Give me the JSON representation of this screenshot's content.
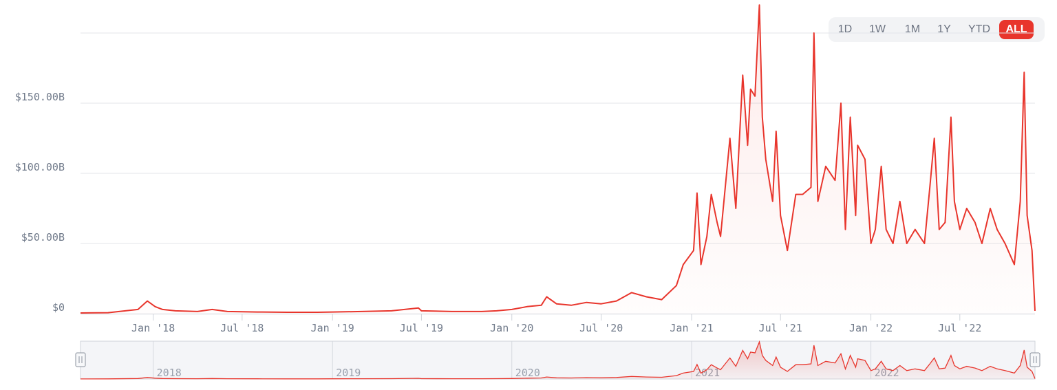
{
  "range_selector": {
    "options": [
      "1D",
      "1W",
      "1M",
      "1Y",
      "YTD",
      "ALL"
    ],
    "selected": "ALL"
  },
  "colors": {
    "line": "#e8352c",
    "grid": "#e3e6ea",
    "active_button": "#e8352c"
  },
  "chart_data": {
    "type": "line",
    "title": "",
    "xlabel": "",
    "ylabel": "",
    "ylim": [
      0,
      200
    ],
    "y_unit": "B USD",
    "yticks": [
      {
        "value": 0,
        "label": "$0"
      },
      {
        "value": 50,
        "label": "$50.00B"
      },
      {
        "value": 100,
        "label": "$100.00B"
      },
      {
        "value": 150,
        "label": "$150.00B"
      }
    ],
    "xlim": [
      "2017-08-06",
      "2022-12-01"
    ],
    "xticks": [
      {
        "date": "2018-01-01",
        "label": "Jan '18"
      },
      {
        "date": "2018-07-01",
        "label": "Jul '18"
      },
      {
        "date": "2019-01-01",
        "label": "Jan '19"
      },
      {
        "date": "2019-07-01",
        "label": "Jul '19"
      },
      {
        "date": "2020-01-01",
        "label": "Jan '20"
      },
      {
        "date": "2020-07-01",
        "label": "Jul '20"
      },
      {
        "date": "2021-01-01",
        "label": "Jan '21"
      },
      {
        "date": "2021-07-01",
        "label": "Jul '21"
      },
      {
        "date": "2022-01-01",
        "label": "Jan '22"
      },
      {
        "date": "2022-07-01",
        "label": "Jul '22"
      }
    ],
    "grid": true,
    "legend": "none",
    "series": [
      {
        "values": [
          [
            "2017-08-06",
            0.5
          ],
          [
            "2017-10-01",
            0.7
          ],
          [
            "2017-12-01",
            3
          ],
          [
            "2017-12-20",
            9
          ],
          [
            "2018-01-05",
            5
          ],
          [
            "2018-01-20",
            3
          ],
          [
            "2018-02-15",
            2
          ],
          [
            "2018-04-01",
            1.5
          ],
          [
            "2018-05-01",
            3
          ],
          [
            "2018-06-01",
            1.5
          ],
          [
            "2018-08-01",
            1.2
          ],
          [
            "2018-10-01",
            1
          ],
          [
            "2018-12-01",
            1
          ],
          [
            "2019-01-01",
            1.2
          ],
          [
            "2019-03-01",
            1.5
          ],
          [
            "2019-05-01",
            2
          ],
          [
            "2019-06-25",
            4
          ],
          [
            "2019-07-01",
            2
          ],
          [
            "2019-09-01",
            1.5
          ],
          [
            "2019-11-01",
            1.5
          ],
          [
            "2019-12-01",
            2
          ],
          [
            "2020-01-01",
            3
          ],
          [
            "2020-02-01",
            5
          ],
          [
            "2020-03-01",
            6
          ],
          [
            "2020-03-12",
            12
          ],
          [
            "2020-04-01",
            7
          ],
          [
            "2020-05-01",
            6
          ],
          [
            "2020-06-01",
            8
          ],
          [
            "2020-07-01",
            7
          ],
          [
            "2020-08-01",
            9
          ],
          [
            "2020-09-01",
            15
          ],
          [
            "2020-10-01",
            12
          ],
          [
            "2020-11-01",
            10
          ],
          [
            "2020-12-01",
            20
          ],
          [
            "2020-12-15",
            35
          ],
          [
            "2021-01-05",
            45
          ],
          [
            "2021-01-12",
            86
          ],
          [
            "2021-01-20",
            35
          ],
          [
            "2021-02-01",
            55
          ],
          [
            "2021-02-10",
            85
          ],
          [
            "2021-02-22",
            65
          ],
          [
            "2021-03-01",
            55
          ],
          [
            "2021-03-20",
            125
          ],
          [
            "2021-04-01",
            75
          ],
          [
            "2021-04-15",
            170
          ],
          [
            "2021-04-25",
            120
          ],
          [
            "2021-05-01",
            160
          ],
          [
            "2021-05-10",
            155
          ],
          [
            "2021-05-19",
            220
          ],
          [
            "2021-05-25",
            140
          ],
          [
            "2021-06-01",
            110
          ],
          [
            "2021-06-15",
            80
          ],
          [
            "2021-06-22",
            130
          ],
          [
            "2021-07-01",
            70
          ],
          [
            "2021-07-15",
            45
          ],
          [
            "2021-08-01",
            85
          ],
          [
            "2021-08-15",
            85
          ],
          [
            "2021-09-01",
            90
          ],
          [
            "2021-09-07",
            200
          ],
          [
            "2021-09-15",
            80
          ],
          [
            "2021-10-01",
            105
          ],
          [
            "2021-10-20",
            95
          ],
          [
            "2021-11-01",
            150
          ],
          [
            "2021-11-10",
            60
          ],
          [
            "2021-11-20",
            140
          ],
          [
            "2021-12-01",
            70
          ],
          [
            "2021-12-05",
            120
          ],
          [
            "2021-12-20",
            110
          ],
          [
            "2022-01-01",
            50
          ],
          [
            "2022-01-10",
            60
          ],
          [
            "2022-01-22",
            105
          ],
          [
            "2022-02-01",
            60
          ],
          [
            "2022-02-15",
            50
          ],
          [
            "2022-03-01",
            80
          ],
          [
            "2022-03-15",
            50
          ],
          [
            "2022-04-01",
            60
          ],
          [
            "2022-04-20",
            50
          ],
          [
            "2022-05-01",
            90
          ],
          [
            "2022-05-10",
            125
          ],
          [
            "2022-05-20",
            60
          ],
          [
            "2022-06-01",
            65
          ],
          [
            "2022-06-13",
            140
          ],
          [
            "2022-06-20",
            80
          ],
          [
            "2022-07-01",
            60
          ],
          [
            "2022-07-15",
            75
          ],
          [
            "2022-08-01",
            65
          ],
          [
            "2022-08-15",
            50
          ],
          [
            "2022-09-01",
            75
          ],
          [
            "2022-09-15",
            60
          ],
          [
            "2022-10-01",
            50
          ],
          [
            "2022-10-20",
            35
          ],
          [
            "2022-11-01",
            80
          ],
          [
            "2022-11-09",
            172
          ],
          [
            "2022-11-15",
            70
          ],
          [
            "2022-11-25",
            45
          ],
          [
            "2022-12-01",
            2
          ]
        ]
      }
    ],
    "navigator": {
      "labels": [
        "2018",
        "2019",
        "2020",
        "2021",
        "2022"
      ],
      "selection": [
        "2017-08-06",
        "2022-12-01"
      ]
    }
  }
}
